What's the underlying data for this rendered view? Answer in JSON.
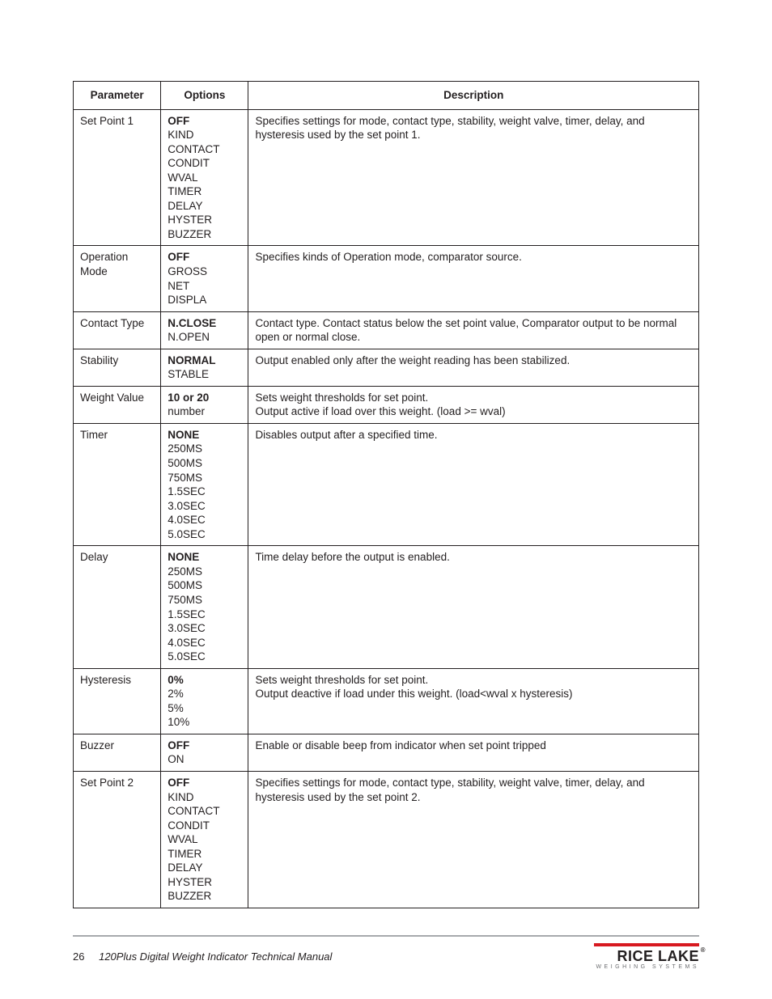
{
  "table": {
    "headers": [
      "Parameter",
      "Options",
      "Description"
    ],
    "rows": [
      {
        "parameter": "Set Point 1",
        "options_bold": "OFF",
        "options_rest": "KIND\nCONTACT\nCONDIT\nWVAL\nTIMER\nDELAY\nHYSTER\nBUZZER",
        "description": "Specifies settings for mode, contact type, stability, weight valve, timer, delay,  and hysteresis used by the set point 1."
      },
      {
        "parameter": "Operation Mode",
        "options_bold": "OFF",
        "options_rest": "GROSS\nNET\nDISPLA",
        "description": "Specifies kinds of Operation mode, comparator source."
      },
      {
        "parameter": "Contact Type",
        "options_bold": "N.CLOSE",
        "options_rest": "N.OPEN",
        "description": "Contact type. Contact status below the set point value, Comparator output to be normal open or normal close."
      },
      {
        "parameter": "Stability",
        "options_bold": "NORMAL",
        "options_rest": "STABLE",
        "description": "Output enabled only after the weight reading has been stabilized."
      },
      {
        "parameter": "Weight Value",
        "options_bold": "10 or 20",
        "options_rest": "number",
        "description": "Sets weight thresholds for set point.\nOutput active if load over this weight. (load >= wval)"
      },
      {
        "parameter": "Timer",
        "options_bold": "NONE",
        "options_rest": "250MS\n500MS\n750MS\n1.5SEC\n3.0SEC\n4.0SEC\n5.0SEC",
        "description": "Disables output after a specified time."
      },
      {
        "parameter": "Delay",
        "options_bold": "NONE",
        "options_rest": "250MS\n500MS\n750MS\n1.5SEC\n3.0SEC\n4.0SEC\n5.0SEC",
        "description": "Time delay before the output is enabled."
      },
      {
        "parameter": "Hysteresis",
        "options_bold": "0%",
        "options_rest": "2%\n5%\n10%",
        "description": "Sets weight thresholds for set point.\nOutput deactive if load under this weight. (load<wval x hysteresis)"
      },
      {
        "parameter": "Buzzer",
        "options_bold": "OFF",
        "options_rest": "ON",
        "description": "Enable or disable beep from indicator when set point tripped"
      },
      {
        "parameter": "Set Point 2",
        "options_bold": "OFF",
        "options_rest": "KIND\nCONTACT\nCONDIT\nWVAL\nTIMER\nDELAY\nHYSTER\nBUZZER",
        "description": "Specifies settings for mode, contact type, stability, weight valve, timer, delay,  and hysteresis used by the set point 2."
      }
    ]
  },
  "footer": {
    "page_number": "26",
    "manual_title": "120Plus Digital Weight Indicator Technical Manual",
    "logo_name": "RICE LAKE",
    "logo_sub": "WEIGHING SYSTEMS"
  },
  "colors": {
    "text": "#231f20",
    "rule": "#a7a9ac",
    "accent": "#d71920",
    "sub": "#6d6e71"
  }
}
